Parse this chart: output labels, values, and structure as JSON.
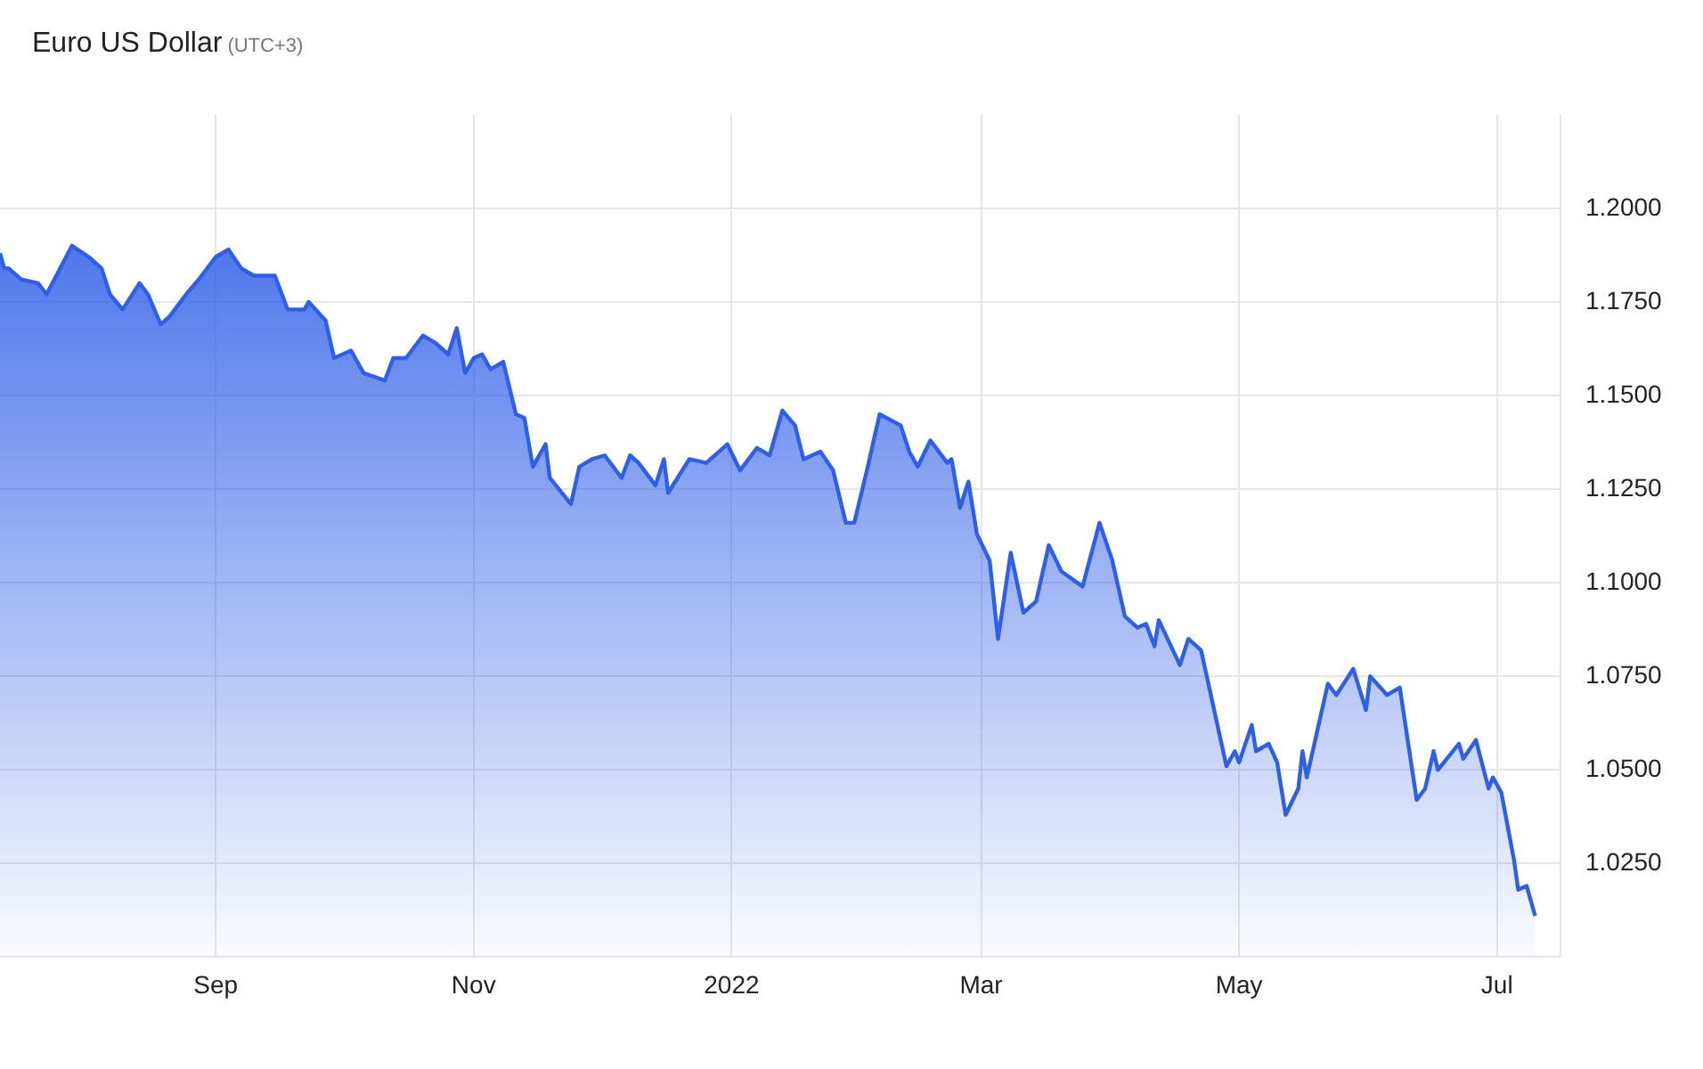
{
  "chart_data": {
    "type": "area",
    "title": "Euro US Dollar",
    "subtitle": "(UTC+3)",
    "x": [
      "2021-07-12",
      "2021-07-13",
      "2021-07-14",
      "2021-07-17",
      "2021-07-21",
      "2021-07-23",
      "2021-07-29",
      "2021-08-02",
      "2021-08-05",
      "2021-08-07",
      "2021-08-10",
      "2021-08-14",
      "2021-08-16",
      "2021-08-19",
      "2021-08-21",
      "2021-08-25",
      "2021-08-28",
      "2021-09-01",
      "2021-09-04",
      "2021-09-07",
      "2021-09-10",
      "2021-09-15",
      "2021-09-18",
      "2021-09-22",
      "2021-09-23",
      "2021-09-27",
      "2021-09-29",
      "2021-10-03",
      "2021-10-06",
      "2021-10-11",
      "2021-10-13",
      "2021-10-16",
      "2021-10-20",
      "2021-10-23",
      "2021-10-26",
      "2021-10-28",
      "2021-10-30",
      "2021-11-01",
      "2021-11-03",
      "2021-11-05",
      "2021-11-08",
      "2021-11-11",
      "2021-11-13",
      "2021-11-15",
      "2021-11-18",
      "2021-11-19",
      "2021-11-24",
      "2021-11-26",
      "2021-11-29",
      "2021-12-02",
      "2021-12-06",
      "2021-12-08",
      "2021-12-10",
      "2021-12-14",
      "2021-12-16",
      "2021-12-17",
      "2021-12-22",
      "2021-12-26",
      "2021-12-29",
      "2021-12-31",
      "2022-01-03",
      "2022-01-07",
      "2022-01-10",
      "2022-01-13",
      "2022-01-16",
      "2022-01-18",
      "2022-01-22",
      "2022-01-25",
      "2022-01-28",
      "2022-01-30",
      "2022-02-02",
      "2022-02-05",
      "2022-02-10",
      "2022-02-12",
      "2022-02-14",
      "2022-02-17",
      "2022-02-21",
      "2022-02-22",
      "2022-02-24",
      "2022-02-26",
      "2022-02-28",
      "2022-03-03",
      "2022-03-05",
      "2022-03-08",
      "2022-03-11",
      "2022-03-14",
      "2022-03-17",
      "2022-03-20",
      "2022-03-25",
      "2022-03-29",
      "2022-04-01",
      "2022-04-04",
      "2022-04-07",
      "2022-04-09",
      "2022-04-11",
      "2022-04-12",
      "2022-04-17",
      "2022-04-19",
      "2022-04-22",
      "2022-04-28",
      "2022-04-30",
      "2022-05-01",
      "2022-05-04",
      "2022-05-05",
      "2022-05-08",
      "2022-05-10",
      "2022-05-12",
      "2022-05-15",
      "2022-05-16",
      "2022-05-17",
      "2022-05-19",
      "2022-05-22",
      "2022-05-24",
      "2022-05-28",
      "2022-05-31",
      "2022-06-01",
      "2022-06-05",
      "2022-06-08",
      "2022-06-12",
      "2022-06-14",
      "2022-06-16",
      "2022-06-17",
      "2022-06-22",
      "2022-06-23",
      "2022-06-26",
      "2022-06-29",
      "2022-06-30",
      "2022-07-02",
      "2022-07-05",
      "2022-07-06",
      "2022-07-08",
      "2022-07-10"
    ],
    "series": [
      {
        "color": "#2f5fe8",
        "values": [
          1.188,
          1.184,
          1.184,
          1.181,
          1.18,
          1.177,
          1.19,
          1.187,
          1.184,
          1.177,
          1.173,
          1.18,
          1.177,
          1.169,
          1.171,
          1.177,
          1.181,
          1.187,
          1.189,
          1.184,
          1.182,
          1.182,
          1.173,
          1.173,
          1.175,
          1.17,
          1.16,
          1.162,
          1.156,
          1.154,
          1.16,
          1.16,
          1.166,
          1.164,
          1.161,
          1.168,
          1.156,
          1.16,
          1.161,
          1.157,
          1.159,
          1.145,
          1.144,
          1.131,
          1.137,
          1.128,
          1.121,
          1.131,
          1.133,
          1.134,
          1.128,
          1.134,
          1.132,
          1.126,
          1.133,
          1.124,
          1.133,
          1.132,
          1.135,
          1.137,
          1.13,
          1.136,
          1.134,
          1.146,
          1.142,
          1.133,
          1.135,
          1.13,
          1.116,
          1.116,
          1.13,
          1.145,
          1.142,
          1.135,
          1.131,
          1.138,
          1.132,
          1.133,
          1.12,
          1.127,
          1.113,
          1.106,
          1.085,
          1.108,
          1.092,
          1.095,
          1.11,
          1.103,
          1.099,
          1.116,
          1.106,
          1.091,
          1.088,
          1.089,
          1.083,
          1.09,
          1.078,
          1.085,
          1.082,
          1.051,
          1.055,
          1.052,
          1.062,
          1.055,
          1.057,
          1.052,
          1.038,
          1.045,
          1.055,
          1.048,
          1.058,
          1.073,
          1.07,
          1.077,
          1.066,
          1.075,
          1.07,
          1.072,
          1.042,
          1.045,
          1.055,
          1.05,
          1.057,
          1.053,
          1.058,
          1.045,
          1.048,
          1.044,
          1.026,
          1.018,
          1.019,
          1.011
        ]
      }
    ],
    "xlim": [
      "2021-07-12",
      "2022-07-16"
    ],
    "xticks": [
      {
        "value": "2021-09-01",
        "label": "Sep"
      },
      {
        "value": "2021-11-01",
        "label": "Nov"
      },
      {
        "value": "2022-01-01",
        "label": "2022"
      },
      {
        "value": "2022-03-01",
        "label": "Mar"
      },
      {
        "value": "2022-05-01",
        "label": "May"
      },
      {
        "value": "2022-07-01",
        "label": "Jul"
      }
    ],
    "ylim": [
      1.0,
      1.225
    ],
    "yticks": [
      {
        "value": 1.025,
        "label": "1.0250"
      },
      {
        "value": 1.05,
        "label": "1.0500"
      },
      {
        "value": 1.075,
        "label": "1.0750"
      },
      {
        "value": 1.1,
        "label": "1.1000"
      },
      {
        "value": 1.125,
        "label": "1.1250"
      },
      {
        "value": 1.15,
        "label": "1.1500"
      },
      {
        "value": 1.175,
        "label": "1.1750"
      },
      {
        "value": 1.2,
        "label": "1.2000"
      }
    ],
    "grid": true,
    "legend": false,
    "marker": "none"
  }
}
